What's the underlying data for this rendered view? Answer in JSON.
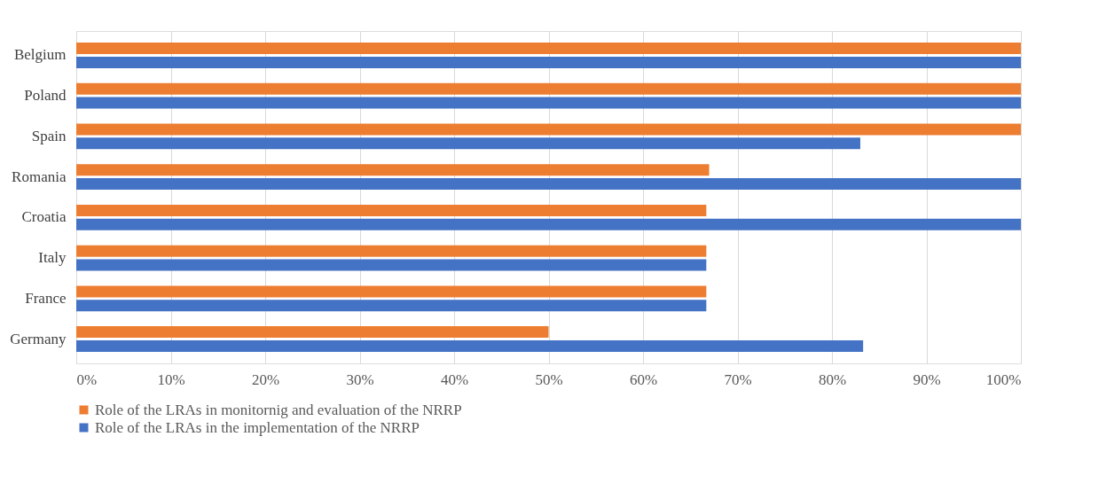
{
  "chart_data": {
    "type": "bar",
    "orientation": "horizontal",
    "categories": [
      "Belgium",
      "Poland",
      "Spain",
      "Romania",
      "Croatia",
      "Italy",
      "France",
      "Germany"
    ],
    "series": [
      {
        "name": "Role of the LRAs in monitornig and evaluation of the NRRP",
        "color": "#ed7d31",
        "values": [
          100,
          100,
          100,
          67,
          66.7,
          66.7,
          66.7,
          50
        ]
      },
      {
        "name": "Role of the LRAs in the implementation of the NRRP",
        "color": "#4472c4",
        "values": [
          100,
          100,
          83,
          100,
          100,
          66.7,
          66.7,
          83.3
        ]
      }
    ],
    "xlim": [
      0,
      100
    ],
    "xticks": [
      {
        "value": 0,
        "label": "0%"
      },
      {
        "value": 10,
        "label": "10%"
      },
      {
        "value": 20,
        "label": "20%"
      },
      {
        "value": 30,
        "label": "30%"
      },
      {
        "value": 40,
        "label": "40%"
      },
      {
        "value": 50,
        "label": "50%"
      },
      {
        "value": 60,
        "label": "60%"
      },
      {
        "value": 70,
        "label": "70%"
      },
      {
        "value": 80,
        "label": "80%"
      },
      {
        "value": 90,
        "label": "90%"
      },
      {
        "value": 100,
        "label": "100%"
      }
    ],
    "grid": "x",
    "legend": "bottom"
  }
}
